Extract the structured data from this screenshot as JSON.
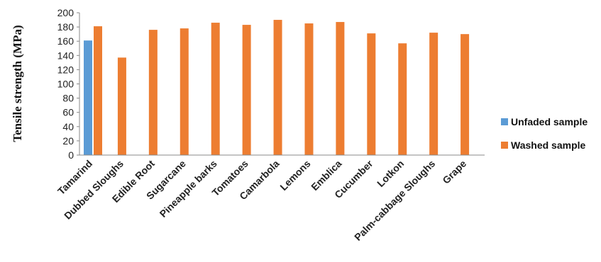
{
  "chart_data": {
    "type": "bar",
    "title": "",
    "xlabel": "",
    "ylabel": "Tensile strength (MPa)",
    "ylim": [
      0,
      200
    ],
    "yticks": [
      0,
      20,
      40,
      60,
      80,
      100,
      120,
      140,
      160,
      180,
      200
    ],
    "grid": false,
    "legend_position": "right",
    "categories": [
      "Tamarind",
      "Dubbed Sloughs",
      "Edible Root",
      "Sugarcane",
      "Pineapple barks",
      "Tomatoes",
      "Camarbola",
      "Lemons",
      "Emblica",
      "Cucumber",
      "Lotkon",
      "Palm-cabbage Sloughs",
      "Grape"
    ],
    "series": [
      {
        "name": "Unfaded sample",
        "color": "#5b9bd5",
        "values": [
          161,
          null,
          null,
          null,
          null,
          null,
          null,
          null,
          null,
          null,
          null,
          null,
          null
        ]
      },
      {
        "name": "Washed sample",
        "color": "#ed7d31",
        "values": [
          181,
          137,
          176,
          178,
          186,
          183,
          190,
          185,
          187,
          171,
          157,
          172,
          170
        ]
      }
    ]
  }
}
